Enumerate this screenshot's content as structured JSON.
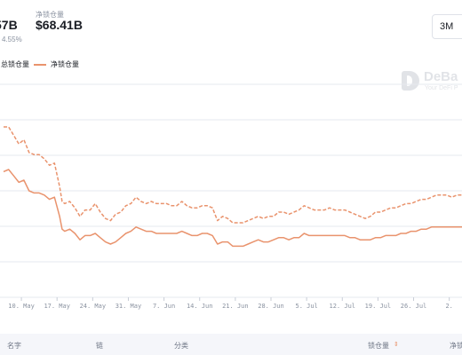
{
  "summary": {
    "stat1_value": "57B",
    "stat1_change": "4.55%",
    "stat2_label": "净锁仓量",
    "stat2_value": "$68.41B"
  },
  "range_selector": {
    "value": "3M"
  },
  "legend": [
    "总锁仓量",
    "净锁仓量"
  ],
  "watermark": {
    "name": "DeBa",
    "tagline": "Your DeFi P"
  },
  "colors": {
    "accent": "#e9936d",
    "grid": "#e6e9ef",
    "tick_text": "#8a92a0"
  },
  "chart_data": {
    "type": "line",
    "title": "",
    "xlabel": "",
    "ylabel": "",
    "x_ticks": [
      "10. May",
      "17. May",
      "24. May",
      "31. May",
      "7. Jun",
      "14. Jun",
      "21. Jun",
      "28. Jun",
      "5. Jul",
      "12. Jul",
      "19. Jul",
      "26. Jul",
      "2."
    ],
    "x_range_days": [
      0,
      90
    ],
    "y_range": [
      0,
      100
    ],
    "grid": true,
    "y_labels_shown": false,
    "legend_placement": "top-left",
    "series": [
      {
        "name": "总锁仓量",
        "style": "dashed",
        "x": [
          0,
          1,
          2,
          3,
          4,
          5,
          6,
          7,
          8,
          9,
          10,
          11,
          11.5,
          12,
          13,
          14,
          15,
          16,
          17,
          18,
          19,
          20,
          21,
          22,
          23,
          24,
          25,
          26,
          27,
          28,
          29,
          30,
          31,
          32,
          33,
          34,
          35,
          36,
          37,
          38,
          39,
          40,
          41,
          42,
          43,
          44,
          45,
          46,
          47,
          48,
          49,
          50,
          51,
          52,
          53,
          54,
          55,
          56,
          57,
          58,
          59,
          60,
          61,
          62,
          63,
          64,
          65,
          66,
          67,
          68,
          69,
          70,
          71,
          72,
          73,
          74,
          75,
          76,
          77,
          78,
          79,
          80,
          81,
          82,
          83,
          84,
          85,
          86,
          87,
          88,
          89,
          90
        ],
        "values": [
          80,
          80,
          76,
          72,
          74,
          68,
          67,
          67,
          65,
          62,
          63,
          52,
          45,
          44,
          45,
          42,
          38,
          41,
          41,
          44,
          40,
          37,
          36,
          39,
          40,
          43,
          44,
          47,
          45,
          44,
          45,
          44,
          44,
          44,
          43,
          43,
          45,
          43,
          42,
          42,
          43,
          43,
          42,
          36,
          38,
          37,
          35,
          35,
          35,
          36,
          37,
          38,
          37,
          38,
          38,
          40,
          40,
          39,
          40,
          41,
          43,
          42,
          41,
          41,
          41,
          42,
          41,
          41,
          41,
          40,
          39,
          38,
          37,
          38,
          40,
          40,
          41,
          42,
          42,
          43,
          44,
          44,
          45,
          46,
          46,
          47,
          48,
          48,
          48,
          47,
          48,
          48
        ]
      },
      {
        "name": "净锁仓量",
        "style": "solid",
        "x": [
          0,
          1,
          2,
          3,
          4,
          5,
          6,
          7,
          8,
          9,
          10,
          11,
          11.5,
          12,
          13,
          14,
          15,
          16,
          17,
          18,
          19,
          20,
          21,
          22,
          23,
          24,
          25,
          26,
          27,
          28,
          29,
          30,
          31,
          32,
          33,
          34,
          35,
          36,
          37,
          38,
          39,
          40,
          41,
          42,
          43,
          44,
          45,
          46,
          47,
          48,
          49,
          50,
          51,
          52,
          53,
          54,
          55,
          56,
          57,
          58,
          59,
          60,
          61,
          62,
          63,
          64,
          65,
          66,
          67,
          68,
          69,
          70,
          71,
          72,
          73,
          74,
          75,
          76,
          77,
          78,
          79,
          80,
          81,
          82,
          83,
          84,
          85,
          86,
          87,
          88,
          89,
          90
        ],
        "values": [
          59,
          60,
          57,
          54,
          55,
          50,
          49,
          49,
          48,
          46,
          47,
          38,
          32,
          31,
          32,
          30,
          27,
          29,
          29,
          30,
          28,
          26,
          25,
          26,
          28,
          30,
          31,
          33,
          32,
          31,
          31,
          30,
          30,
          30,
          30,
          30,
          31,
          30,
          29,
          29,
          30,
          30,
          29,
          25,
          26,
          26,
          24,
          24,
          24,
          25,
          26,
          27,
          26,
          26,
          27,
          28,
          28,
          27,
          28,
          28,
          30,
          29,
          29,
          29,
          29,
          29,
          29,
          29,
          29,
          28,
          28,
          27,
          27,
          27,
          28,
          28,
          29,
          29,
          29,
          30,
          30,
          31,
          31,
          32,
          32,
          33,
          33,
          33,
          33,
          33,
          33,
          33
        ]
      }
    ]
  },
  "table": {
    "columns": [
      "名字",
      "链",
      "分类",
      "锁仓量",
      "净锁"
    ]
  }
}
